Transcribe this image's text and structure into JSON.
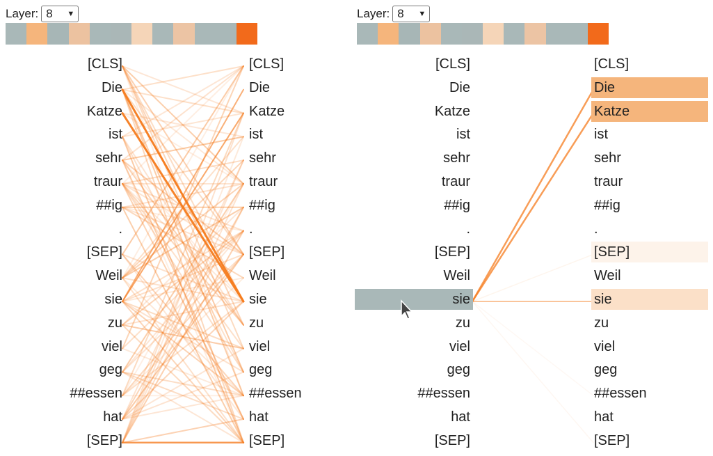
{
  "layer_label": "Layer:",
  "layer_value": "8",
  "head_colors": [
    "#a9b8b8",
    "#f5b57c",
    "#a7b6b6",
    "#ecc2a0",
    "#a9b8b8",
    "#aab7b7",
    "#f5d5b8",
    "#a9b8b8",
    "#ecc4a4",
    "#a9b8b8",
    "#a9b8b8",
    "#f26a1b"
  ],
  "tokens": [
    "[CLS]",
    "Die",
    "Katze",
    "ist",
    "sehr",
    "traur",
    "##ig",
    ".",
    "[SEP]",
    "Weil",
    "sie",
    "zu",
    "viel",
    "geg",
    "##essen",
    "hat",
    "[SEP]"
  ],
  "selected_token_index": 10,
  "accent_color": "#f57c1f"
}
